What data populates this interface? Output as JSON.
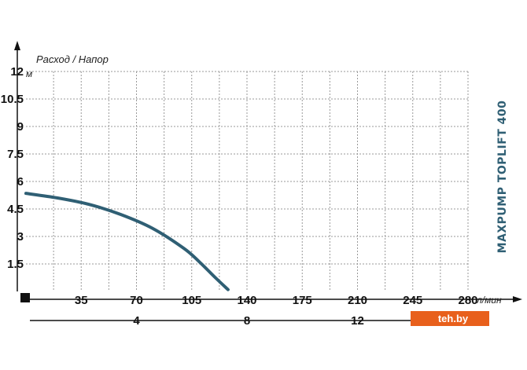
{
  "chart_data": {
    "type": "line",
    "title": "Расход / Напор",
    "product_label": "MAXPUMP TOPLIFT 400",
    "y_unit": "м",
    "x_unit": "л/мин",
    "xlim": [
      0,
      280
    ],
    "ylim": [
      0,
      12
    ],
    "x_ticks": [
      "35",
      "70",
      "105",
      "140",
      "175",
      "210",
      "245",
      "280"
    ],
    "y_ticks": [
      "1.5",
      "3",
      "4.5",
      "6",
      "7.5",
      "9",
      "10.5",
      "12"
    ],
    "secondary_x_ticks": [
      "4",
      "8",
      "12"
    ],
    "grid": true,
    "series": [
      {
        "x": [
          0,
          20,
          40,
          60,
          80,
          100,
          110,
          120,
          128
        ],
        "y": [
          5.35,
          5.1,
          4.75,
          4.2,
          3.45,
          2.35,
          1.6,
          0.75,
          0.1
        ]
      }
    ],
    "colors": {
      "curve": "#2f5f74",
      "grid": "#999999",
      "axis": "#111111",
      "watermark": "#e8601c"
    }
  },
  "watermark": {
    "text": "teh.by"
  }
}
